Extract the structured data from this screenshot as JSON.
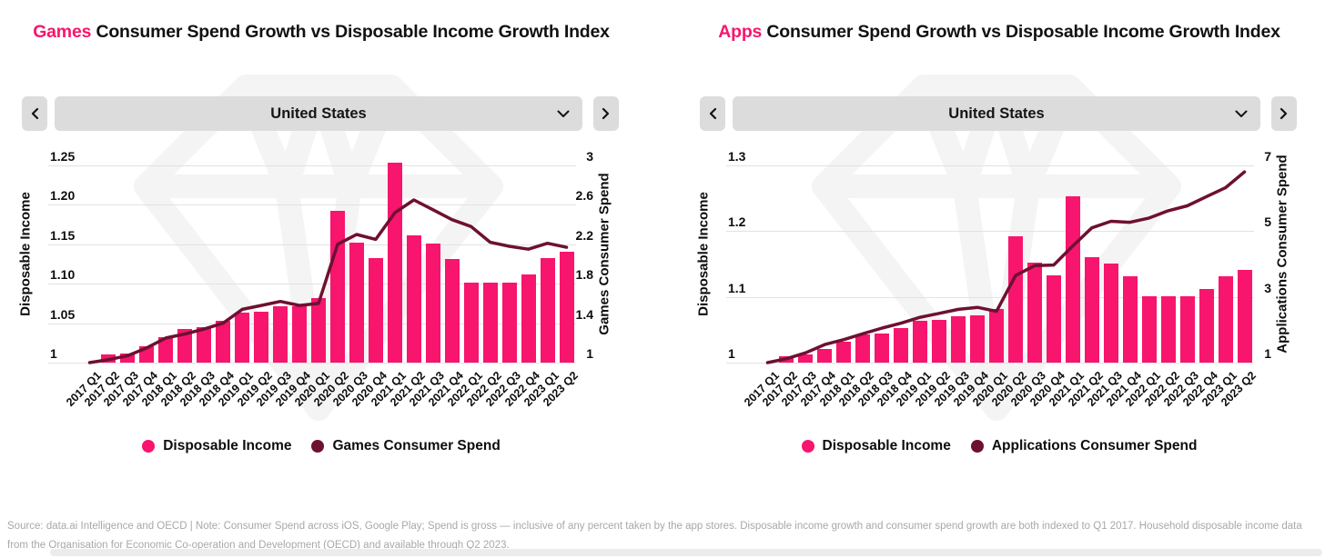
{
  "colors": {
    "bar_pink": "#f7156d",
    "line_maroon": "#6e1031",
    "panel_gray": "#dcdcdc",
    "gridline_gray": "#e2e2e2",
    "footer_gray": "#a8a8a8"
  },
  "footer": {
    "source_note": "Source: data.ai Intelligence and OECD | Note: Consumer Spend across iOS, Google Play; Spend is gross — inclusive of any percent taken by the app stores. Disposable income growth and consumer spend growth are both indexed to Q1 2017. Household disposable income data from the Organisation for Economic Co-operation and Development (OECD) and available through Q2 2023."
  },
  "chart_data": [
    {
      "type": "bar",
      "subtype": "combo-bar-line-dual-axis",
      "title_accent": "Games",
      "title_rest": " Consumer Spend Growth vs Disposable Income Growth Index",
      "selector": {
        "value": "United States",
        "prev_icon": "chevron-left",
        "next_icon": "chevron-right",
        "open_icon": "chevron-down"
      },
      "categories": [
        "2017 Q1",
        "2017 Q2",
        "2017 Q3",
        "2017 Q4",
        "2018 Q1",
        "2018 Q2",
        "2018 Q3",
        "2018 Q4",
        "2019 Q1",
        "2019 Q2",
        "2019 Q3",
        "2019 Q4",
        "2020 Q1",
        "2020 Q2",
        "2020 Q3",
        "2020 Q4",
        "2021 Q1",
        "2021 Q2",
        "2021 Q3",
        "2021 Q4",
        "2022 Q1",
        "2022 Q2",
        "2022 Q3",
        "2022 Q4",
        "2023 Q1",
        "2023 Q2"
      ],
      "series": [
        {
          "name": "Disposable Income",
          "type": "bar",
          "axis": "left",
          "color": "#f7156d",
          "values": [
            1.0,
            1.01,
            1.012,
            1.021,
            1.032,
            1.043,
            1.045,
            1.053,
            1.063,
            1.065,
            1.071,
            1.072,
            1.082,
            1.192,
            1.152,
            1.133,
            1.253,
            1.161,
            1.151,
            1.131,
            1.101,
            1.101,
            1.101,
            1.112,
            1.132,
            1.141
          ]
        },
        {
          "name": "Games Consumer Spend",
          "type": "line",
          "axis": "right",
          "color": "#6e1031",
          "values": [
            1.0,
            1.03,
            1.07,
            1.15,
            1.25,
            1.29,
            1.34,
            1.4,
            1.54,
            1.58,
            1.62,
            1.58,
            1.6,
            2.2,
            2.3,
            2.25,
            2.52,
            2.65,
            2.55,
            2.45,
            2.38,
            2.22,
            2.18,
            2.15,
            2.21,
            2.17
          ]
        }
      ],
      "left_axis": {
        "label": "Disposable Income",
        "min": 1,
        "max": 1.25,
        "ticks": [
          1,
          1.05,
          1.1,
          1.15,
          1.2,
          1.25
        ],
        "tick_labels": [
          "1",
          "1.05",
          "1.10",
          "1.15",
          "1.20",
          "1.25"
        ]
      },
      "right_axis": {
        "label": "Games Consumer Spend",
        "min": 1,
        "max": 3,
        "ticks": [
          1,
          1.4,
          1.8,
          2.2,
          2.6,
          3
        ],
        "tick_labels": [
          "1",
          "1.4",
          "1.8",
          "2.2",
          "2.6",
          "3"
        ]
      },
      "grid": "horizontal",
      "legend_position": "bottom-center"
    },
    {
      "type": "bar",
      "subtype": "combo-bar-line-dual-axis",
      "title_accent": "Apps",
      "title_rest": " Consumer Spend Growth vs Disposable Income Growth Index",
      "selector": {
        "value": "United States",
        "prev_icon": "chevron-left",
        "next_icon": "chevron-right",
        "open_icon": "chevron-down"
      },
      "categories": [
        "2017 Q1",
        "2017 Q2",
        "2017 Q3",
        "2017 Q4",
        "2018 Q1",
        "2018 Q2",
        "2018 Q3",
        "2018 Q4",
        "2019 Q1",
        "2019 Q2",
        "2019 Q3",
        "2019 Q4",
        "2020 Q1",
        "2020 Q2",
        "2020 Q3",
        "2020 Q4",
        "2021 Q1",
        "2021 Q2",
        "2021 Q3",
        "2021 Q4",
        "2022 Q1",
        "2022 Q2",
        "2022 Q3",
        "2022 Q4",
        "2023 Q1",
        "2023 Q2"
      ],
      "series": [
        {
          "name": "Disposable Income",
          "type": "bar",
          "axis": "left",
          "color": "#f7156d",
          "values": [
            1.0,
            1.01,
            1.012,
            1.021,
            1.032,
            1.043,
            1.045,
            1.053,
            1.063,
            1.065,
            1.071,
            1.072,
            1.082,
            1.192,
            1.152,
            1.133,
            1.253,
            1.161,
            1.151,
            1.131,
            1.101,
            1.101,
            1.101,
            1.112,
            1.132,
            1.141
          ]
        },
        {
          "name": "Applications Consumer Spend",
          "type": "line",
          "axis": "right",
          "color": "#6e1031",
          "values": [
            1.0,
            1.12,
            1.3,
            1.55,
            1.7,
            1.88,
            2.05,
            2.2,
            2.38,
            2.5,
            2.62,
            2.68,
            2.56,
            3.65,
            3.95,
            3.97,
            4.55,
            5.1,
            5.3,
            5.27,
            5.4,
            5.62,
            5.77,
            6.05,
            6.32,
            6.8
          ]
        }
      ],
      "left_axis": {
        "label": "Disposable Income",
        "min": 1,
        "max": 1.3,
        "ticks": [
          1,
          1.1,
          1.2,
          1.3
        ],
        "tick_labels": [
          "1",
          "1.1",
          "1.2",
          "1.3"
        ]
      },
      "right_axis": {
        "label": "Applications Consumer Spend",
        "min": 1,
        "max": 7,
        "ticks": [
          1,
          3,
          5,
          7
        ],
        "tick_labels": [
          "1",
          "3",
          "5",
          "7"
        ]
      },
      "grid": "horizontal",
      "legend_position": "bottom-center"
    }
  ]
}
